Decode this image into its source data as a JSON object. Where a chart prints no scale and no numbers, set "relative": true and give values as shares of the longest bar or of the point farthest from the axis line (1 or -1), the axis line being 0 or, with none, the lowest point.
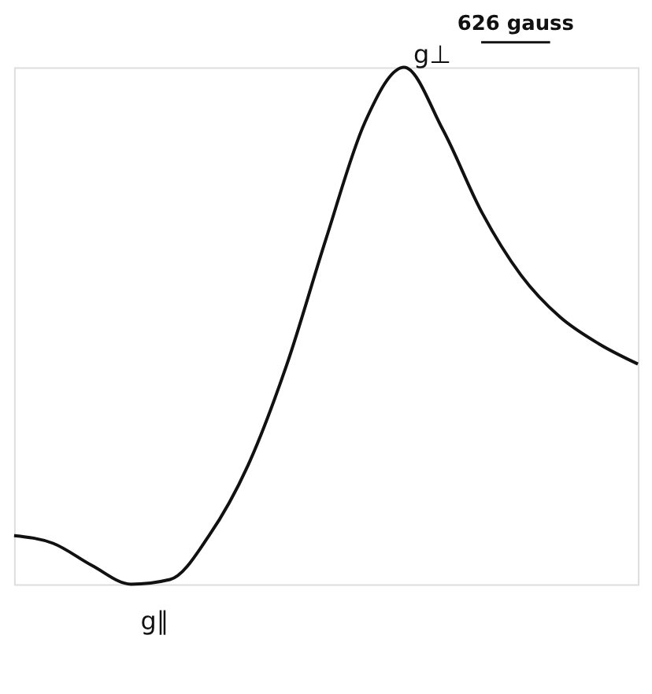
{
  "chart_data": {
    "type": "line",
    "relative": true,
    "categories": [
      null,
      null,
      null,
      null,
      null,
      null,
      null,
      null,
      null,
      null,
      null,
      null,
      null,
      null,
      null,
      null,
      null
    ],
    "series": [
      {
        "color": "#111111",
        "values": [
          0.094,
          0.079,
          0.036,
          0,
          0.009,
          0.094,
          0.23,
          0.426,
          0.668,
          0.894,
          1,
          0.879,
          0.719,
          0.598,
          0.517,
          0.465,
          0.426
        ]
      }
    ],
    "annotations": [
      "g⊥",
      "g∥",
      "626 gauss"
    ],
    "marker": "none",
    "line_style": "solid",
    "grid": false
  }
}
